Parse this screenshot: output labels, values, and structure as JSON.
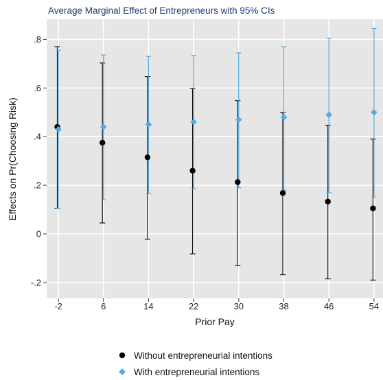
{
  "chart_data": {
    "type": "scatter",
    "title": "Average Marginal Effect of Entrepreneurs with 95% CIs",
    "xlabel": "Prior Pay",
    "ylabel": "Effects on Pr(Choosing Risk)",
    "x": [
      -2,
      6,
      14,
      22,
      30,
      38,
      46,
      54
    ],
    "x_tick_labels": [
      "-2",
      "6",
      "14",
      "22",
      "30",
      "38",
      "46",
      "54"
    ],
    "y_ticks": [
      -0.2,
      0,
      0.2,
      0.4,
      0.6,
      0.8
    ],
    "y_tick_labels": [
      "-.2",
      "0",
      ".2",
      ".4",
      ".6",
      ".8"
    ],
    "ylim": [
      -0.24,
      0.87
    ],
    "grid": true,
    "legend_position": "bottom",
    "series": [
      {
        "name": "Without entrepreneurial intentions",
        "marker": "circle",
        "color": "#000000",
        "values": [
          0.44,
          0.375,
          0.315,
          0.26,
          0.213,
          0.168,
          0.133,
          0.105
        ],
        "ci_low": [
          0.105,
          0.045,
          -0.022,
          -0.082,
          -0.13,
          -0.168,
          -0.185,
          -0.19
        ],
        "ci_high": [
          0.77,
          0.703,
          0.647,
          0.598,
          0.548,
          0.5,
          0.447,
          0.39
        ]
      },
      {
        "name": "With entrepreneurial intentions",
        "marker": "diamond",
        "color": "#5aaadf",
        "values": [
          0.43,
          0.44,
          0.45,
          0.46,
          0.47,
          0.48,
          0.49,
          0.5
        ],
        "ci_low": [
          0.105,
          0.14,
          0.165,
          0.185,
          0.19,
          0.18,
          0.17,
          0.15
        ],
        "ci_high": [
          0.755,
          0.736,
          0.73,
          0.734,
          0.745,
          0.77,
          0.805,
          0.845
        ]
      }
    ]
  }
}
